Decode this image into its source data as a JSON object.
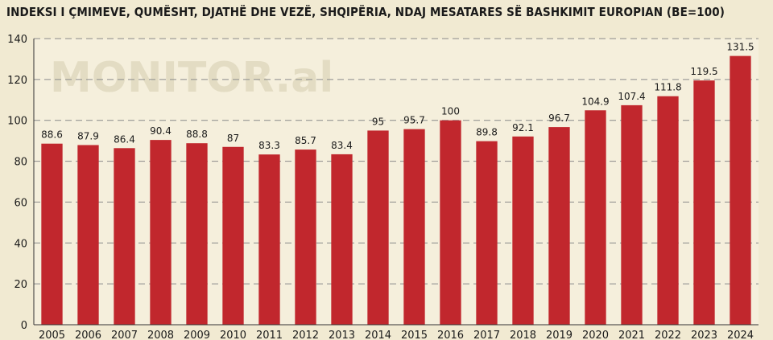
{
  "watermark": "MONITOR.al",
  "colors": {
    "background": "#f1ead2",
    "plot_background": "#f5efdc",
    "bar": "#c1272d",
    "grid": "#8a8a8a"
  },
  "chart_data": {
    "type": "bar",
    "title": "INDEKSI I ÇMIMEVE, QUMËSHT, DJATHË DHE VEZË, SHQIPËRIA, NDAJ MESATARES SË BASHKIMIT EUROPIAN (BE=100)",
    "categories": [
      "2005",
      "2006",
      "2007",
      "2008",
      "2009",
      "2010",
      "2011",
      "2012",
      "2013",
      "2014",
      "2015",
      "2016",
      "2017",
      "2018",
      "2019",
      "2020",
      "2021",
      "2022",
      "2023",
      "2024"
    ],
    "values": [
      88.6,
      87.9,
      86.4,
      90.4,
      88.8,
      87,
      83.3,
      85.7,
      83.4,
      95,
      95.7,
      100,
      89.8,
      92.1,
      96.7,
      104.9,
      107.4,
      111.8,
      119.5,
      131.5
    ],
    "value_labels": [
      "88.6",
      "87.9",
      "86.4",
      "90.4",
      "88.8",
      "87",
      "83.3",
      "85.7",
      "83.4",
      "95",
      "95.7",
      "100",
      "89.8",
      "92.1",
      "96.7",
      "104.9",
      "107.4",
      "111.8",
      "119.5",
      "131.5"
    ],
    "ylim": [
      0,
      140
    ],
    "yticks": [
      0,
      20,
      40,
      60,
      80,
      100,
      120,
      140
    ],
    "grid": true,
    "xlabel": "",
    "ylabel": ""
  }
}
